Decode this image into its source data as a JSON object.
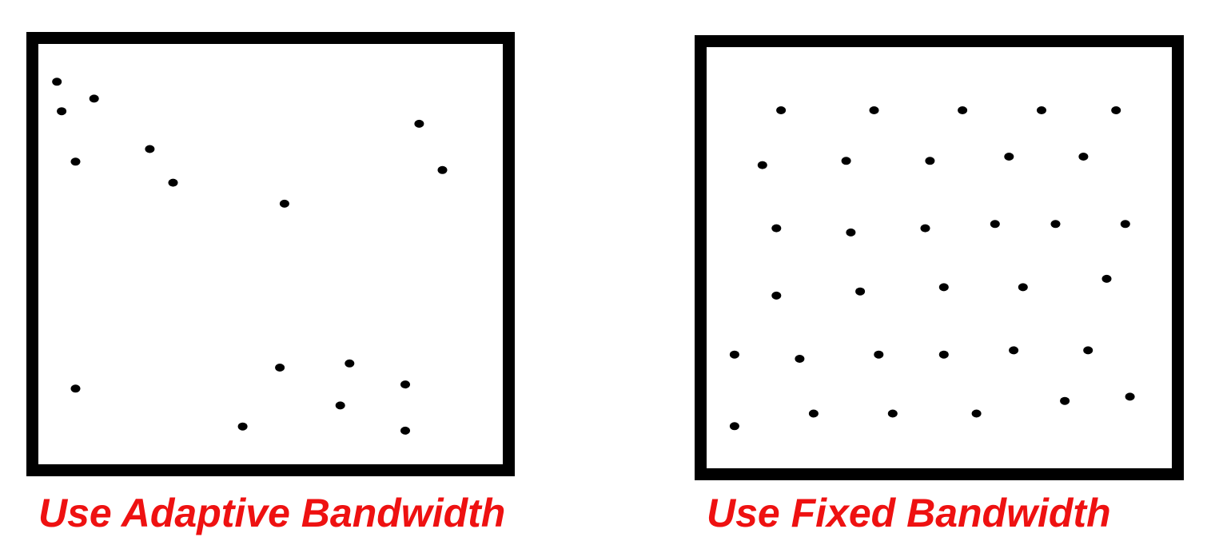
{
  "colors": {
    "caption": "#ee1111",
    "frame": "#000000",
    "point": "#000000",
    "background": "#ffffff"
  },
  "left_panel": {
    "caption": "Use Adaptive Bandwidth",
    "points": [
      [
        0.04,
        0.09
      ],
      [
        0.05,
        0.16
      ],
      [
        0.12,
        0.13
      ],
      [
        0.08,
        0.28
      ],
      [
        0.24,
        0.25
      ],
      [
        0.29,
        0.33
      ],
      [
        0.53,
        0.38
      ],
      [
        0.82,
        0.19
      ],
      [
        0.87,
        0.3
      ],
      [
        0.08,
        0.82
      ],
      [
        0.52,
        0.77
      ],
      [
        0.67,
        0.76
      ],
      [
        0.79,
        0.81
      ],
      [
        0.65,
        0.86
      ],
      [
        0.44,
        0.91
      ],
      [
        0.79,
        0.92
      ]
    ]
  },
  "right_panel": {
    "caption": "Use Fixed Bandwidth",
    "points": [
      [
        0.16,
        0.15
      ],
      [
        0.36,
        0.15
      ],
      [
        0.55,
        0.15
      ],
      [
        0.72,
        0.15
      ],
      [
        0.88,
        0.15
      ],
      [
        0.12,
        0.28
      ],
      [
        0.3,
        0.27
      ],
      [
        0.48,
        0.27
      ],
      [
        0.65,
        0.26
      ],
      [
        0.81,
        0.26
      ],
      [
        0.15,
        0.43
      ],
      [
        0.31,
        0.44
      ],
      [
        0.47,
        0.43
      ],
      [
        0.62,
        0.42
      ],
      [
        0.75,
        0.42
      ],
      [
        0.9,
        0.42
      ],
      [
        0.15,
        0.59
      ],
      [
        0.33,
        0.58
      ],
      [
        0.51,
        0.57
      ],
      [
        0.68,
        0.57
      ],
      [
        0.86,
        0.55
      ],
      [
        0.06,
        0.73
      ],
      [
        0.2,
        0.74
      ],
      [
        0.37,
        0.73
      ],
      [
        0.51,
        0.73
      ],
      [
        0.66,
        0.72
      ],
      [
        0.82,
        0.72
      ],
      [
        0.06,
        0.9
      ],
      [
        0.23,
        0.87
      ],
      [
        0.4,
        0.87
      ],
      [
        0.58,
        0.87
      ],
      [
        0.77,
        0.84
      ],
      [
        0.91,
        0.83
      ]
    ]
  }
}
